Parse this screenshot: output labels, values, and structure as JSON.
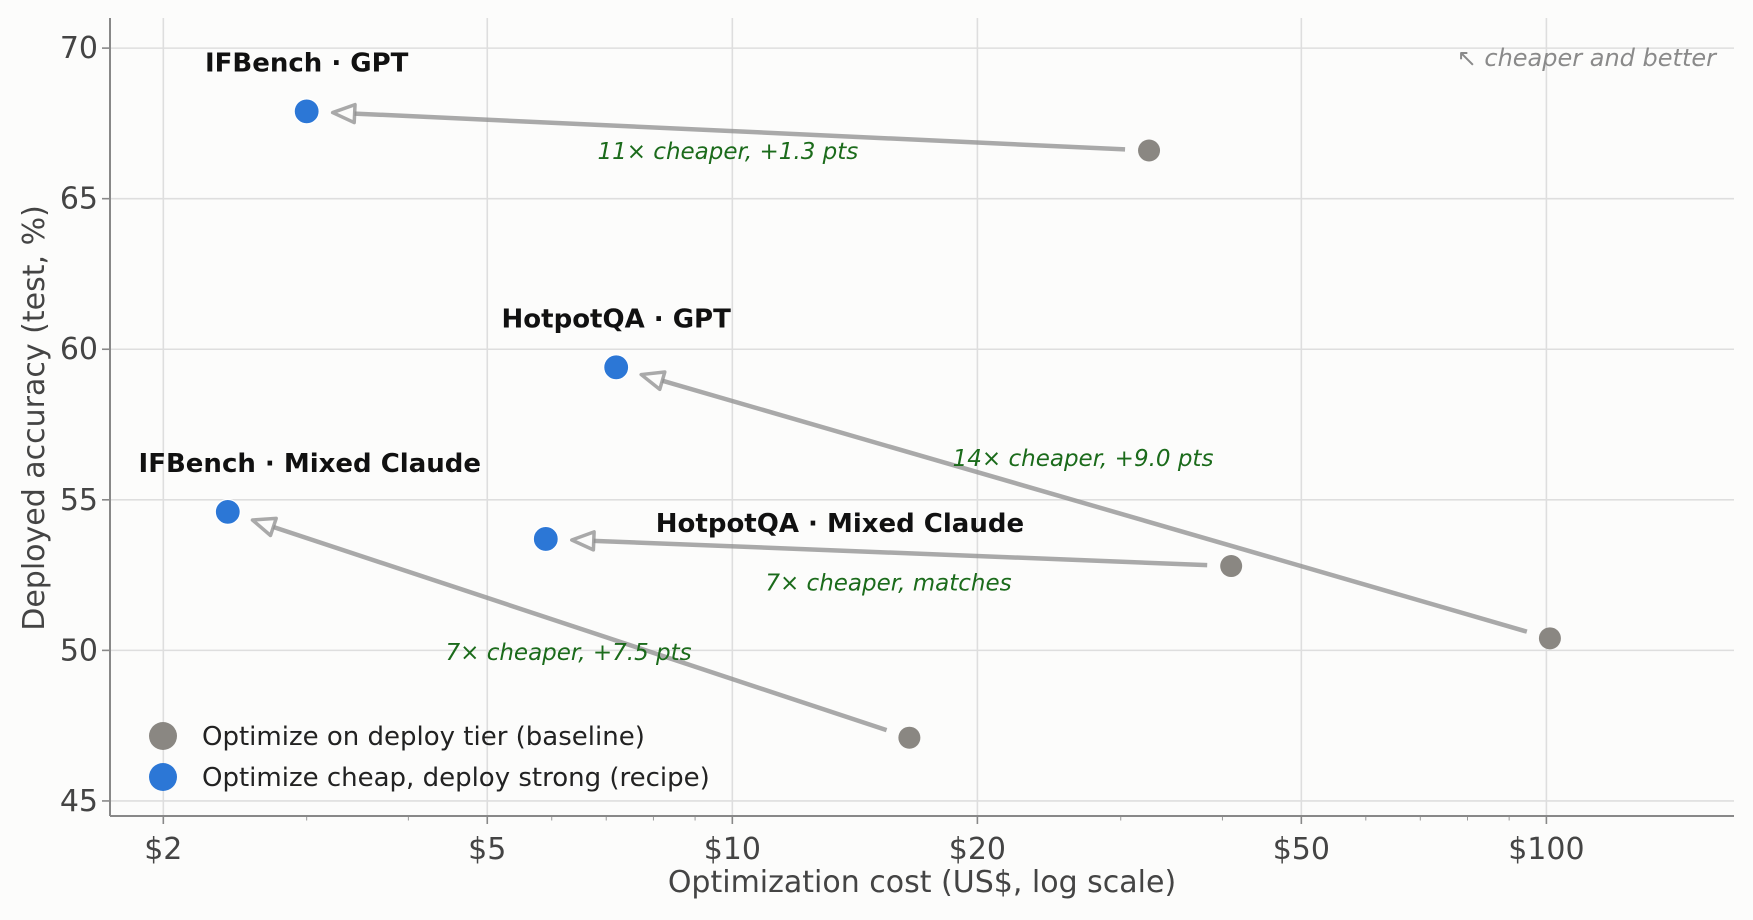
{
  "chart_data": {
    "type": "scatter",
    "xlabel": "Optimization cost  (US$, log scale)",
    "ylabel": "Deployed accuracy  (test, %)",
    "x_scale": "log",
    "xlim": [
      1.72,
      170
    ],
    "ylim": [
      44.5,
      71.0
    ],
    "x_ticks": [
      {
        "value": 2,
        "label": "$2"
      },
      {
        "value": 5,
        "label": "$5"
      },
      {
        "value": 10,
        "label": "$10"
      },
      {
        "value": 20,
        "label": "$20"
      },
      {
        "value": 50,
        "label": "$50"
      },
      {
        "value": 100,
        "label": "$100"
      }
    ],
    "y_ticks": [
      45,
      50,
      55,
      60,
      65,
      70
    ],
    "grid": true,
    "legend_position": "bottom-left",
    "corner_note": "↖ cheaper and better",
    "colors": {
      "baseline": "#8a8782",
      "recipe": "#2c77d6",
      "arrow": "#8e8e8e",
      "annotation": "#1b6b1b"
    },
    "series": [
      {
        "name": "Optimize on deploy tier (baseline)",
        "color": "#8a8782",
        "points": [
          {
            "x": 32.5,
            "y": 66.6
          },
          {
            "x": 101,
            "y": 50.4
          },
          {
            "x": 41,
            "y": 52.8
          },
          {
            "x": 16.5,
            "y": 47.1
          }
        ]
      },
      {
        "name": "Optimize cheap, deploy strong (recipe)",
        "color": "#2c77d6",
        "points": [
          {
            "x": 3.0,
            "y": 67.9
          },
          {
            "x": 7.2,
            "y": 59.4
          },
          {
            "x": 2.4,
            "y": 54.6
          },
          {
            "x": 5.9,
            "y": 53.7
          }
        ]
      }
    ],
    "pairs": [
      {
        "label": "IFBench · GPT",
        "from": {
          "x": 32.5,
          "y": 66.6
        },
        "to": {
          "x": 3.0,
          "y": 67.9
        },
        "annotation": "11× cheaper,  +1.3 pts"
      },
      {
        "label": "HotpotQA · GPT",
        "from": {
          "x": 101,
          "y": 50.4
        },
        "to": {
          "x": 7.2,
          "y": 59.4
        },
        "annotation": "14× cheaper,  +9.0 pts"
      },
      {
        "label": "IFBench · Mixed Claude",
        "from": {
          "x": 16.5,
          "y": 47.1
        },
        "to": {
          "x": 2.4,
          "y": 54.6
        },
        "annotation": "7× cheaper,  +7.5 pts"
      },
      {
        "label": "HotpotQA · Mixed Claude",
        "from": {
          "x": 41,
          "y": 52.8
        },
        "to": {
          "x": 5.9,
          "y": 53.7
        },
        "annotation": "7× cheaper,  matches"
      }
    ]
  }
}
